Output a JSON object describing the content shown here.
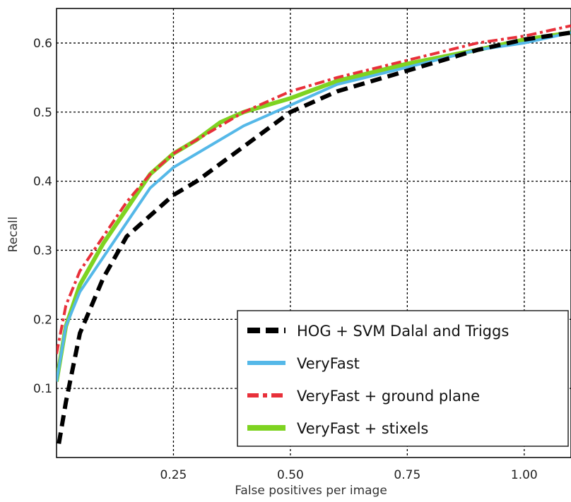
{
  "chart_data": {
    "type": "line",
    "title": "",
    "xlabel": "False positives per image",
    "ylabel": "Recall",
    "xlim": [
      0.0,
      1.1
    ],
    "ylim": [
      0.0,
      0.65
    ],
    "xticks": [
      0.25,
      0.5,
      0.75,
      1.0
    ],
    "xtick_labels": [
      "0.25",
      "0.50",
      "0.75",
      "1.00"
    ],
    "yticks": [
      0.1,
      0.2,
      0.3,
      0.4,
      0.5,
      0.6
    ],
    "ytick_labels": [
      "0.1",
      "0.2",
      "0.3",
      "0.4",
      "0.5",
      "0.6"
    ],
    "grid": true,
    "legend_position": "bottom-right",
    "series": [
      {
        "name": "HOG + SVM Dalal and Triggs",
        "color": "#000000",
        "style": "dashed-thick",
        "x": [
          0.005,
          0.02,
          0.05,
          0.1,
          0.15,
          0.2,
          0.25,
          0.3,
          0.4,
          0.5,
          0.6,
          0.75,
          0.9,
          1.0,
          1.1
        ],
        "y": [
          0.02,
          0.08,
          0.18,
          0.26,
          0.32,
          0.35,
          0.38,
          0.4,
          0.45,
          0.5,
          0.53,
          0.56,
          0.59,
          0.605,
          0.615
        ]
      },
      {
        "name": "VeryFast",
        "color": "#55b8e8",
        "style": "solid",
        "x": [
          0.0,
          0.02,
          0.05,
          0.1,
          0.15,
          0.2,
          0.25,
          0.3,
          0.4,
          0.5,
          0.6,
          0.75,
          0.9,
          1.0,
          1.1
        ],
        "y": [
          0.11,
          0.19,
          0.24,
          0.29,
          0.34,
          0.39,
          0.42,
          0.44,
          0.48,
          0.51,
          0.54,
          0.565,
          0.59,
          0.6,
          0.615
        ]
      },
      {
        "name": "VeryFast + ground plane",
        "color": "#e8303a",
        "style": "dashdot",
        "x": [
          0.0,
          0.02,
          0.05,
          0.1,
          0.15,
          0.2,
          0.25,
          0.3,
          0.4,
          0.5,
          0.6,
          0.75,
          0.9,
          1.0,
          1.1
        ],
        "y": [
          0.15,
          0.22,
          0.27,
          0.32,
          0.37,
          0.41,
          0.44,
          0.46,
          0.5,
          0.53,
          0.55,
          0.575,
          0.6,
          0.61,
          0.625
        ]
      },
      {
        "name": "VeryFast + stixels",
        "color": "#7ed321",
        "style": "solid-thick",
        "x": [
          0.0,
          0.02,
          0.05,
          0.1,
          0.15,
          0.2,
          0.25,
          0.3,
          0.35,
          0.4,
          0.5,
          0.6,
          0.75,
          0.9,
          1.0,
          1.1
        ],
        "y": [
          0.11,
          0.19,
          0.25,
          0.31,
          0.36,
          0.41,
          0.44,
          0.46,
          0.485,
          0.5,
          0.52,
          0.545,
          0.57,
          0.59,
          0.605,
          0.615
        ]
      }
    ]
  }
}
